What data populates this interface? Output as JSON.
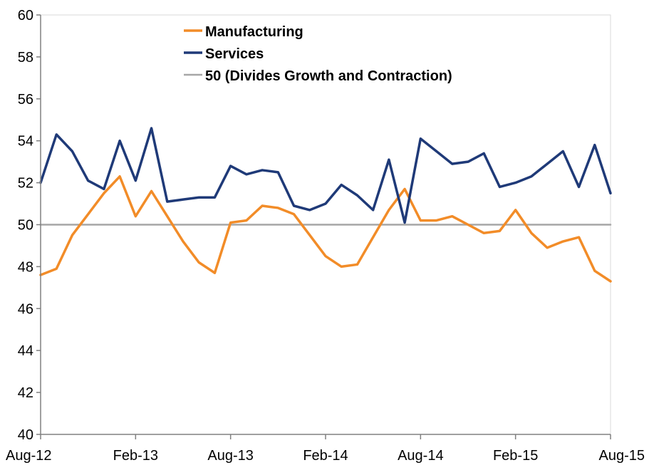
{
  "chart_data": {
    "type": "line",
    "x": [
      "Aug-12",
      "Sep-12",
      "Oct-12",
      "Nov-12",
      "Dec-12",
      "Jan-13",
      "Feb-13",
      "Mar-13",
      "Apr-13",
      "May-13",
      "Jun-13",
      "Jul-13",
      "Aug-13",
      "Sep-13",
      "Oct-13",
      "Nov-13",
      "Dec-13",
      "Jan-14",
      "Feb-14",
      "Mar-14",
      "Apr-14",
      "May-14",
      "Jun-14",
      "Jul-14",
      "Aug-14",
      "Sep-14",
      "Oct-14",
      "Nov-14",
      "Dec-14",
      "Jan-15",
      "Feb-15",
      "Mar-15",
      "Apr-15",
      "May-15",
      "Jun-15",
      "Jul-15",
      "Aug-15"
    ],
    "x_tick_labels": [
      "Aug-12",
      "Feb-13",
      "Aug-13",
      "Feb-14",
      "Aug-14",
      "Feb-15",
      "Aug-15"
    ],
    "y_tick_labels": [
      "40",
      "42",
      "44",
      "46",
      "48",
      "50",
      "52",
      "54",
      "56",
      "58",
      "60"
    ],
    "ylim": [
      40,
      60
    ],
    "y_ticks": [
      40,
      42,
      44,
      46,
      48,
      50,
      52,
      54,
      56,
      58,
      60
    ],
    "grid": false,
    "legend_position": "top-center",
    "series": [
      {
        "name": "Manufacturing",
        "color": "#F28C28",
        "values": [
          47.6,
          47.9,
          49.5,
          50.5,
          51.5,
          52.3,
          50.4,
          51.6,
          50.4,
          49.2,
          48.2,
          47.7,
          50.1,
          50.2,
          50.9,
          50.8,
          50.5,
          49.5,
          48.5,
          48.0,
          48.1,
          49.4,
          50.7,
          51.7,
          50.2,
          50.2,
          50.4,
          50.0,
          49.6,
          49.7,
          50.7,
          49.6,
          48.9,
          49.2,
          49.4,
          47.8,
          47.3
        ]
      },
      {
        "name": "Services",
        "color": "#1F3A78",
        "values": [
          52.0,
          54.3,
          53.5,
          52.1,
          51.7,
          54.0,
          52.1,
          54.6,
          51.1,
          51.2,
          51.3,
          51.3,
          52.8,
          52.4,
          52.6,
          52.5,
          50.9,
          50.7,
          51.0,
          51.9,
          51.4,
          50.7,
          53.1,
          50.1,
          54.1,
          53.5,
          52.9,
          53.0,
          53.4,
          51.8,
          52.0,
          52.3,
          52.9,
          53.5,
          51.8,
          53.8,
          51.5
        ]
      },
      {
        "name": "50 (Divides Growth and Contraction)",
        "color": "#A6A6A6",
        "values": [
          50,
          50,
          50,
          50,
          50,
          50,
          50,
          50,
          50,
          50,
          50,
          50,
          50,
          50,
          50,
          50,
          50,
          50,
          50,
          50,
          50,
          50,
          50,
          50,
          50,
          50,
          50,
          50,
          50,
          50,
          50,
          50,
          50,
          50,
          50,
          50,
          50
        ]
      }
    ]
  }
}
